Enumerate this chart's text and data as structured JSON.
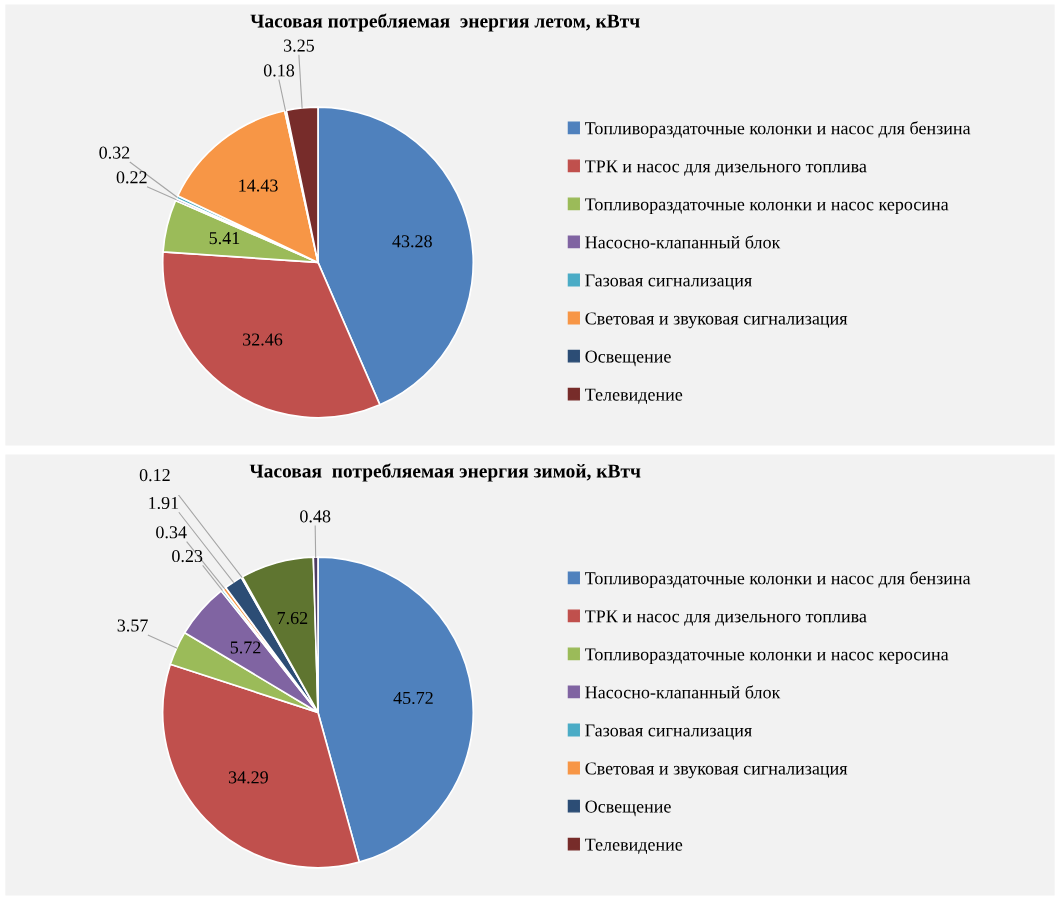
{
  "chart_data": [
    {
      "type": "pie",
      "title": "Часовая потребляемая  энергия летом, кВтч",
      "legend": "right",
      "data_labels": true,
      "categories": [
        "Топливораздаточные колонки и насос для бензина",
        "ТРК и насос для дизельного топлива",
        "Топливораздаточные колонки и насос керосина",
        "Насосно-клапанный блок",
        "Газовая сигнализация",
        "Световая и звуковая сигнализация",
        "Освещение",
        "Телевидение"
      ],
      "values": [
        43.28,
        32.46,
        5.41,
        0.22,
        0.32,
        14.43,
        0.18,
        3.25
      ],
      "colors": [
        "#4f81bd",
        "#c0504d",
        "#9bbb59",
        "#8064a2",
        "#4bacc6",
        "#f79646",
        "#2c4d75",
        "#772c2a"
      ]
    },
    {
      "type": "pie",
      "title": "Часовая  потребляемая энергия зимой, кВтч",
      "legend": "right",
      "data_labels": true,
      "categories": [
        "Топливораздаточные колонки и насос для бензина",
        "ТРК и насос для дизельного топлива",
        "Топливораздаточные колонки и насос керосина",
        "Насосно-клапанный блок",
        "Газовая сигнализация",
        "Световая и звуковая сигнализация",
        "Освещение",
        "Телевидение",
        null,
        null
      ],
      "values": [
        45.72,
        34.29,
        3.57,
        5.72,
        0.23,
        0.34,
        1.91,
        0.12,
        7.62,
        0.48
      ],
      "colors": [
        "#4f81bd",
        "#c0504d",
        "#9bbb59",
        "#8064a2",
        "#4bacc6",
        "#f79646",
        "#2c4d75",
        "#772c2a",
        "#5f7530",
        "#4d3b62"
      ]
    }
  ]
}
